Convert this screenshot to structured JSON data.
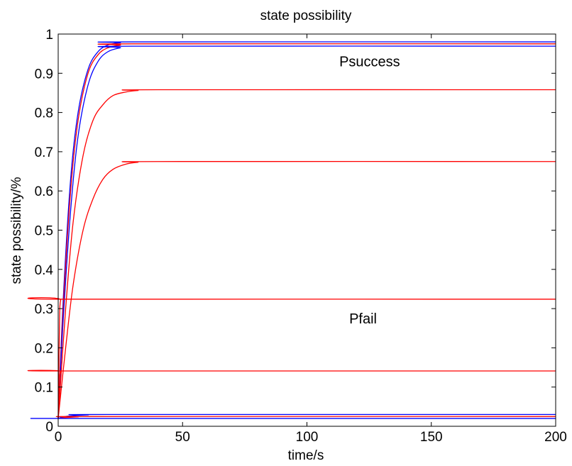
{
  "chart_data": {
    "type": "line",
    "title": "state possibility",
    "xlabel": "time/s",
    "ylabel": "state possibility/%",
    "xlim": [
      0,
      200
    ],
    "ylim": [
      0,
      1
    ],
    "xticks": [
      0,
      50,
      100,
      150,
      200
    ],
    "yticks": [
      0,
      0.1,
      0.2,
      0.3,
      0.4,
      0.5,
      0.6,
      0.7,
      0.8,
      0.9,
      1
    ],
    "xtick_labels": [
      "0",
      "50",
      "100",
      "150",
      "200"
    ],
    "ytick_labels": [
      "0",
      "0.1",
      "0.2",
      "0.3",
      "0.4",
      "0.5",
      "0.6",
      "0.7",
      "0.8",
      "0.9",
      "1"
    ],
    "grid": false,
    "annotations": [
      {
        "text": "Psuccess",
        "x": 113,
        "y": 0.93
      },
      {
        "text": "Pfail",
        "x": 117,
        "y": 0.275
      }
    ],
    "series": [
      {
        "color": "#0000ff",
        "values": [
          [
            0,
            0.02
          ],
          [
            2,
            0.32
          ],
          [
            5,
            0.63
          ],
          [
            8,
            0.8
          ],
          [
            12,
            0.91
          ],
          [
            16,
            0.955
          ],
          [
            20,
            0.972
          ],
          [
            25,
            0.978
          ],
          [
            30,
            0.98
          ],
          [
            200,
            0.98
          ]
        ]
      },
      {
        "color": "#ff0000",
        "values": [
          [
            0,
            0.02
          ],
          [
            2,
            0.3
          ],
          [
            5,
            0.6
          ],
          [
            8,
            0.78
          ],
          [
            12,
            0.9
          ],
          [
            16,
            0.947
          ],
          [
            20,
            0.965
          ],
          [
            25,
            0.972
          ],
          [
            30,
            0.975
          ],
          [
            200,
            0.975
          ]
        ]
      },
      {
        "color": "#0000ff",
        "values": [
          [
            0,
            0.02
          ],
          [
            2,
            0.27
          ],
          [
            5,
            0.55
          ],
          [
            8,
            0.74
          ],
          [
            12,
            0.87
          ],
          [
            16,
            0.93
          ],
          [
            20,
            0.955
          ],
          [
            25,
            0.965
          ],
          [
            30,
            0.969
          ],
          [
            200,
            0.969
          ]
        ]
      },
      {
        "color": "#ff0000",
        "values": [
          [
            0,
            0.02
          ],
          [
            3,
            0.3
          ],
          [
            6,
            0.52
          ],
          [
            10,
            0.69
          ],
          [
            14,
            0.78
          ],
          [
            18,
            0.82
          ],
          [
            22,
            0.843
          ],
          [
            27,
            0.852
          ],
          [
            32,
            0.856
          ],
          [
            40,
            0.858
          ],
          [
            200,
            0.858
          ]
        ]
      },
      {
        "color": "#ff0000",
        "values": [
          [
            0,
            0.02
          ],
          [
            3,
            0.2
          ],
          [
            6,
            0.36
          ],
          [
            10,
            0.5
          ],
          [
            14,
            0.58
          ],
          [
            18,
            0.63
          ],
          [
            22,
            0.655
          ],
          [
            27,
            0.668
          ],
          [
            32,
            0.673
          ],
          [
            40,
            0.675
          ],
          [
            200,
            0.675
          ]
        ]
      },
      {
        "color": "#ff0000",
        "values": [
          [
            0,
            0.02
          ],
          [
            0.5,
            0.25
          ],
          [
            1,
            0.322
          ],
          [
            3,
            0.324
          ],
          [
            200,
            0.324
          ]
        ]
      },
      {
        "color": "#ff0000",
        "values": [
          [
            0,
            0.02
          ],
          [
            0.5,
            0.11
          ],
          [
            1,
            0.14
          ],
          [
            3,
            0.141
          ],
          [
            200,
            0.141
          ]
        ]
      },
      {
        "color": "#0000ff",
        "values": [
          [
            0,
            0.02
          ],
          [
            2,
            0.024
          ],
          [
            6,
            0.027
          ],
          [
            12,
            0.029
          ],
          [
            20,
            0.03
          ],
          [
            200,
            0.03
          ]
        ]
      },
      {
        "color": "#ff0000",
        "values": [
          [
            0,
            0.02
          ],
          [
            3,
            0.022
          ],
          [
            8,
            0.024
          ],
          [
            15,
            0.025
          ],
          [
            200,
            0.025
          ]
        ]
      },
      {
        "color": "#0000ff",
        "values": [
          [
            0,
            0.02
          ],
          [
            5,
            0.02
          ],
          [
            200,
            0.02
          ]
        ]
      }
    ]
  }
}
